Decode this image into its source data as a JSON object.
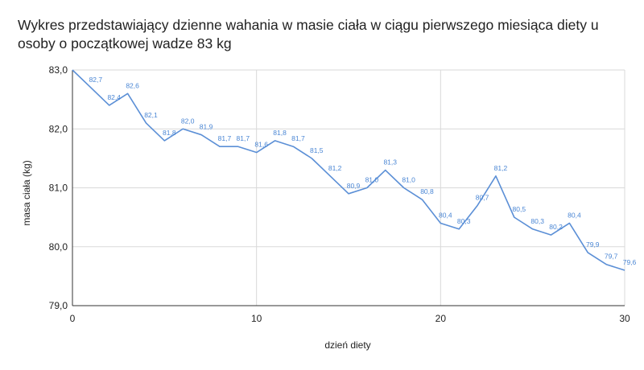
{
  "chart_data": {
    "type": "line",
    "title": "Wykres przedstawiający dzienne wahania w masie ciała w ciągu pierwszego miesiąca diety u osoby o początkowej wadze 83 kg",
    "xlabel": "dzień diety",
    "ylabel": "masa ciała (kg)",
    "xlim": [
      0,
      30
    ],
    "ylim": [
      79.0,
      83.0
    ],
    "x_ticks": [
      "0",
      "10",
      "20",
      "30"
    ],
    "y_ticks": [
      "79,0",
      "80,0",
      "81,0",
      "82,0",
      "83,0"
    ],
    "x": [
      0,
      1,
      2,
      3,
      4,
      5,
      6,
      7,
      8,
      9,
      10,
      11,
      12,
      13,
      14,
      15,
      16,
      17,
      18,
      19,
      20,
      21,
      22,
      23,
      24,
      25,
      26,
      27,
      28,
      29,
      30
    ],
    "values": [
      83.0,
      82.7,
      82.4,
      82.6,
      82.1,
      81.8,
      82.0,
      81.9,
      81.7,
      81.7,
      81.6,
      81.8,
      81.7,
      81.5,
      81.2,
      80.9,
      81.0,
      81.3,
      81.0,
      80.8,
      80.4,
      80.3,
      80.7,
      81.2,
      80.5,
      80.3,
      80.2,
      80.4,
      79.9,
      79.7,
      79.6
    ],
    "data_labels": [
      "",
      "82,7",
      "82,4",
      "82,6",
      "82,1",
      "81,8",
      "82,0",
      "81,9",
      "81,7",
      "81,7",
      "81,6",
      "81,8",
      "81,7",
      "81,5",
      "81,2",
      "80,9",
      "81,0",
      "81,3",
      "81,0",
      "80,8",
      "80,4",
      "80,3",
      "80,7",
      "81,2",
      "80,5",
      "80,3",
      "80,2",
      "80,4",
      "79,9",
      "79,7",
      "79,6"
    ],
    "grid": true,
    "legend": "none",
    "colors": {
      "line": "#5b8fd6",
      "label": "#4a86d4",
      "grid": "#d9d9d9",
      "axis": "#333333"
    }
  }
}
